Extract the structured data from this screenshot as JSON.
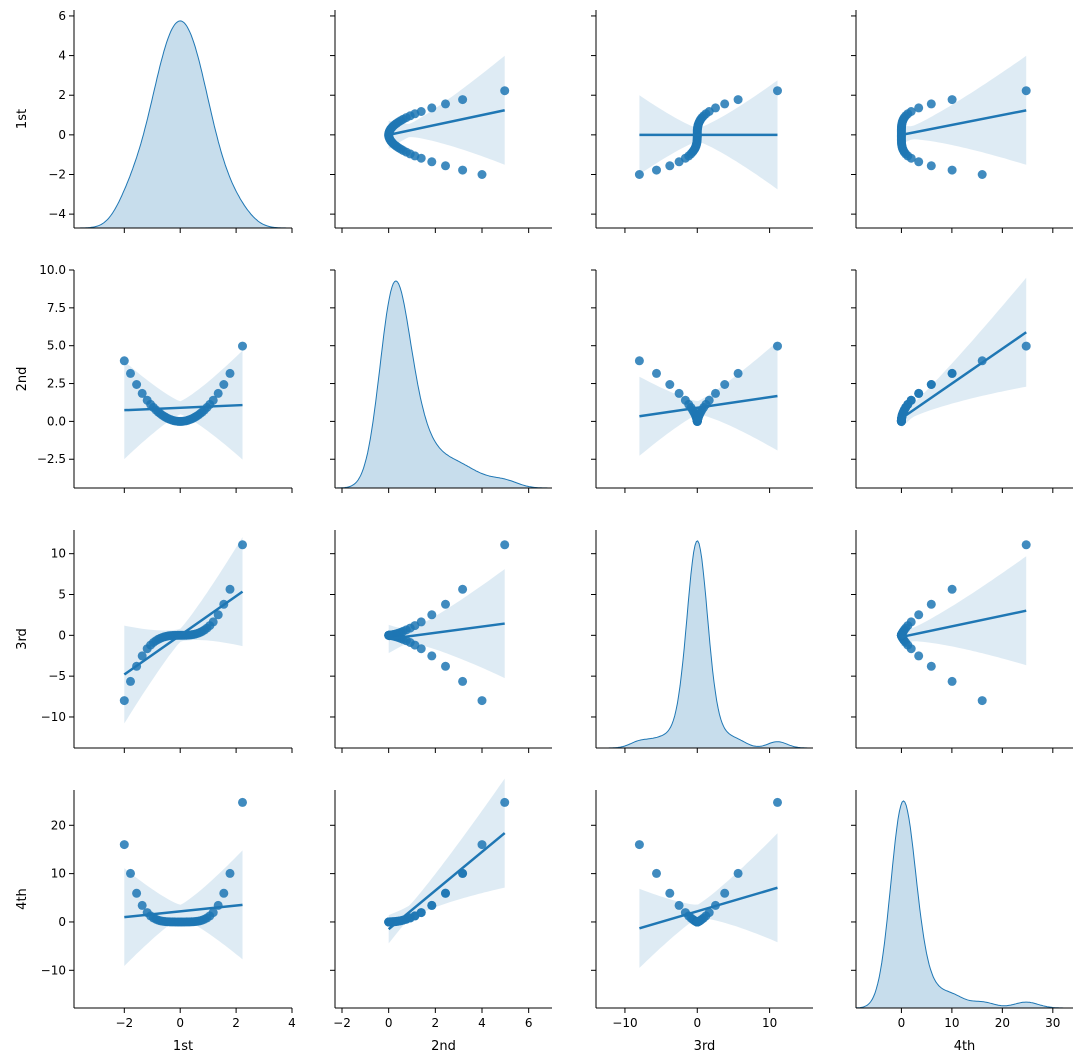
{
  "chart_data": {
    "type": "pairplot",
    "variables": [
      "1st",
      "2nd",
      "3rd",
      "4th"
    ],
    "diag_kind": "kde",
    "off_diag_kind": "reg",
    "colors": {
      "main": "#1f77b4",
      "fill": "#1f77b4"
    },
    "x_ticks": {
      "1st": [
        -2,
        0,
        2,
        4
      ],
      "2nd": [
        -2,
        0,
        2,
        4,
        6
      ],
      "3rd": [
        -10,
        0,
        10
      ],
      "4th": [
        0,
        10,
        20,
        30
      ]
    },
    "x_tick_labels": {
      "1st": [
        "−2",
        "0",
        "2",
        "4"
      ],
      "2nd": [
        "−2",
        "0",
        "2",
        "4",
        "6"
      ],
      "3rd": [
        "−10",
        "0",
        "10"
      ],
      "4th": [
        "0",
        "10",
        "20",
        "30"
      ]
    },
    "y_ticks": {
      "1st": [
        -4,
        -2,
        0,
        2,
        4,
        6
      ],
      "2nd": [
        -2.5,
        0.0,
        2.5,
        5.0,
        7.5,
        10.0
      ],
      "3rd": [
        -10,
        -5,
        0,
        5,
        10
      ],
      "4th": [
        -10,
        0,
        10,
        20
      ]
    },
    "y_tick_labels": {
      "1st": [
        "−4",
        "−2",
        "0",
        "2",
        "4",
        "6"
      ],
      "2nd": [
        "−2.5",
        "0.0",
        "2.5",
        "5.0",
        "7.5",
        "10.0"
      ],
      "3rd": [
        "−10",
        "−5",
        "0",
        "5",
        "10"
      ],
      "4th": [
        "−10",
        "0",
        "10",
        "20"
      ]
    },
    "xlim": {
      "1st": [
        -3.8,
        4.0
      ],
      "2nd": [
        -2.3,
        7.0
      ],
      "3rd": [
        -14.0,
        16.0
      ],
      "4th": [
        -9.0,
        34.0
      ]
    },
    "ylim": {
      "1st": [
        -4.7,
        6.3
      ],
      "2nd": [
        -4.4,
        10.0
      ],
      "3rd": [
        -13.8,
        12.9
      ],
      "4th": [
        -17.8,
        27.3
      ]
    },
    "points_1st": [
      -2.0,
      -1.78,
      -1.56,
      -1.36,
      -1.18,
      -1.06,
      -0.96,
      -0.87,
      -0.79,
      -0.72,
      -0.65,
      -0.58,
      -0.52,
      -0.46,
      -0.4,
      -0.34,
      -0.28,
      -0.22,
      -0.16,
      -0.1,
      -0.05,
      0.0,
      0.05,
      0.1,
      0.16,
      0.22,
      0.28,
      0.34,
      0.4,
      0.46,
      0.52,
      0.58,
      0.65,
      0.72,
      0.79,
      0.87,
      0.96,
      1.06,
      1.18,
      1.36,
      1.56,
      1.78,
      2.23
    ],
    "reg_lines": {
      "1st|2nd": [
        0.0,
        0.25
      ],
      "1st|3rd": [
        0.0,
        0.0
      ],
      "1st|4th": [
        0.0,
        0.05
      ],
      "2nd|1st": [
        0.9,
        0.08
      ],
      "2nd|3rd": [
        0.9,
        0.07
      ],
      "2nd|4th": [
        0.2,
        0.23
      ],
      "3rd|1st": [
        0.0,
        2.4
      ],
      "3rd|2nd": [
        -0.45,
        0.38
      ],
      "3rd|4th": [
        -0.2,
        0.13
      ],
      "4th|1st": [
        2.2,
        0.6
      ],
      "4th|2nd": [
        -1.5,
        4.0
      ],
      "4th|3rd": [
        2.2,
        0.44
      ]
    },
    "kde_peaks": {
      "1st": 5.7,
      "2nd": 9.3,
      "3rd": 11.2,
      "4th": 25.0
    }
  }
}
